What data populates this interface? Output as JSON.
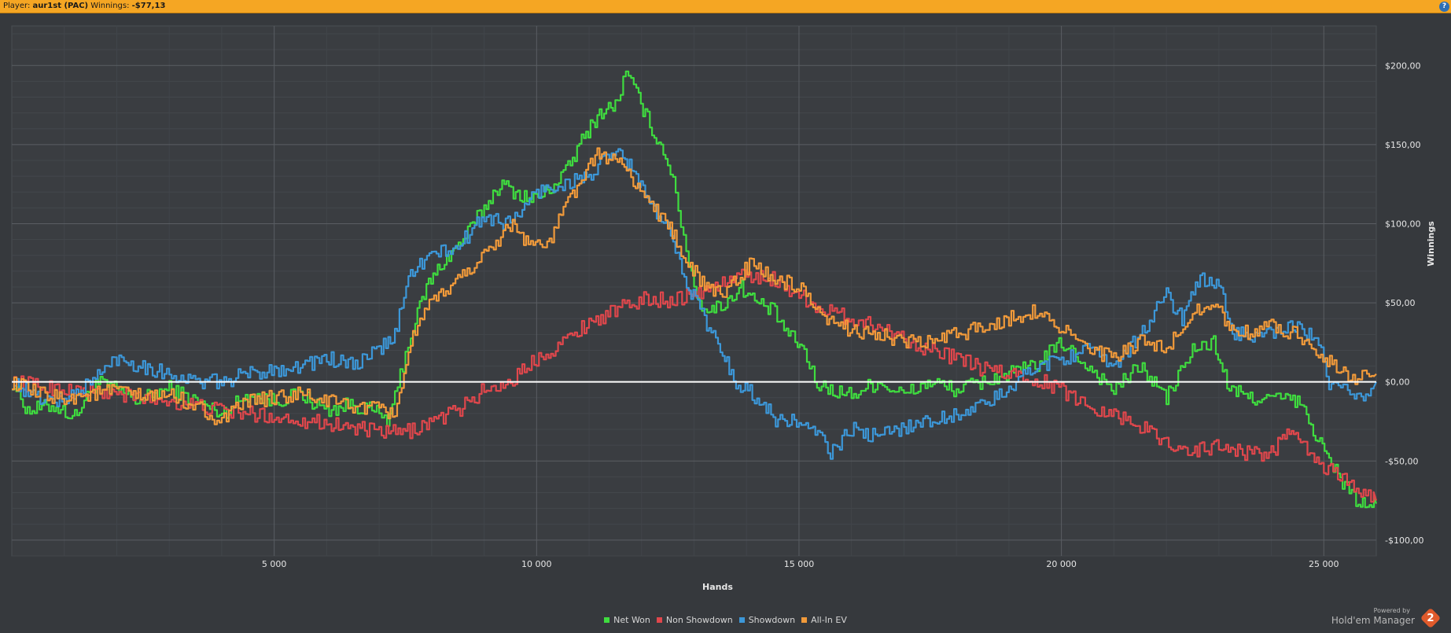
{
  "header": {
    "player_label": "Player:",
    "player_name": "aur1st (PAC)",
    "winnings_label": "Winnings:",
    "winnings_value": "-$77,13",
    "help_icon": "question-icon"
  },
  "branding": {
    "powered_by": "Powered by",
    "product": "Hold'em Manager",
    "logo_text": "2"
  },
  "chart_data": {
    "type": "line",
    "xlabel": "Hands",
    "ylabel": "Winnings",
    "xlim": [
      0,
      26000
    ],
    "ylim": [
      -110,
      225
    ],
    "xticks": [
      5000,
      10000,
      15000,
      20000,
      25000
    ],
    "xtick_labels": [
      "5 000",
      "10 000",
      "15 000",
      "20 000",
      "25 000"
    ],
    "yticks": [
      -100,
      -50,
      0,
      50,
      100,
      150,
      200
    ],
    "ytick_labels": [
      "-$100,00",
      "-$50,00",
      "$0,00",
      "$50,00",
      "$100,00",
      "$150,00",
      "$200,00"
    ],
    "grid": true,
    "legend": "bottom-center",
    "zero_line_color": "#ffffff",
    "series": [
      {
        "name": "Net Won",
        "color": "#3fdc3f",
        "points": [
          [
            0,
            0
          ],
          [
            300,
            -18
          ],
          [
            800,
            -15
          ],
          [
            1200,
            -22
          ],
          [
            1600,
            0
          ],
          [
            2000,
            -5
          ],
          [
            2400,
            -12
          ],
          [
            3000,
            -4
          ],
          [
            3500,
            -12
          ],
          [
            4000,
            -20
          ],
          [
            4500,
            -8
          ],
          [
            5000,
            -12
          ],
          [
            5500,
            -8
          ],
          [
            6000,
            -18
          ],
          [
            6500,
            -14
          ],
          [
            7000,
            -20
          ],
          [
            7200,
            -25
          ],
          [
            7400,
            5
          ],
          [
            7600,
            30
          ],
          [
            7900,
            60
          ],
          [
            8200,
            75
          ],
          [
            8600,
            90
          ],
          [
            9000,
            110
          ],
          [
            9300,
            125
          ],
          [
            9600,
            120
          ],
          [
            9900,
            115
          ],
          [
            10200,
            120
          ],
          [
            10600,
            135
          ],
          [
            10900,
            155
          ],
          [
            11200,
            170
          ],
          [
            11500,
            175
          ],
          [
            11700,
            195
          ],
          [
            11900,
            182
          ],
          [
            12200,
            160
          ],
          [
            12500,
            140
          ],
          [
            12700,
            110
          ],
          [
            12900,
            75
          ],
          [
            13100,
            50
          ],
          [
            13300,
            45
          ],
          [
            13600,
            50
          ],
          [
            13900,
            60
          ],
          [
            14200,
            50
          ],
          [
            14500,
            45
          ],
          [
            14800,
            30
          ],
          [
            15100,
            20
          ],
          [
            15300,
            0
          ],
          [
            15600,
            -5
          ],
          [
            16000,
            -8
          ],
          [
            16500,
            0
          ],
          [
            17000,
            -8
          ],
          [
            17500,
            0
          ],
          [
            18000,
            -5
          ],
          [
            18500,
            0
          ],
          [
            19000,
            5
          ],
          [
            19500,
            10
          ],
          [
            20000,
            25
          ],
          [
            20500,
            10
          ],
          [
            21000,
            -5
          ],
          [
            21500,
            10
          ],
          [
            22000,
            -10
          ],
          [
            22500,
            20
          ],
          [
            22900,
            25
          ],
          [
            23200,
            -5
          ],
          [
            23600,
            -10
          ],
          [
            24000,
            -10
          ],
          [
            24500,
            -12
          ],
          [
            24800,
            -30
          ],
          [
            25100,
            -50
          ],
          [
            25400,
            -65
          ],
          [
            25700,
            -78
          ],
          [
            26000,
            -77
          ]
        ]
      },
      {
        "name": "Non Showdown",
        "color": "#e0474c",
        "points": [
          [
            0,
            0
          ],
          [
            1000,
            -5
          ],
          [
            2000,
            -8
          ],
          [
            3000,
            -12
          ],
          [
            4000,
            -18
          ],
          [
            5000,
            -22
          ],
          [
            6000,
            -26
          ],
          [
            7000,
            -32
          ],
          [
            7500,
            -32
          ],
          [
            8000,
            -25
          ],
          [
            8500,
            -18
          ],
          [
            9000,
            -5
          ],
          [
            9500,
            0
          ],
          [
            10000,
            15
          ],
          [
            10500,
            25
          ],
          [
            11000,
            38
          ],
          [
            11500,
            45
          ],
          [
            12000,
            52
          ],
          [
            12500,
            52
          ],
          [
            13000,
            55
          ],
          [
            13500,
            62
          ],
          [
            14000,
            68
          ],
          [
            14500,
            65
          ],
          [
            15000,
            55
          ],
          [
            15500,
            45
          ],
          [
            16000,
            40
          ],
          [
            16500,
            35
          ],
          [
            17000,
            28
          ],
          [
            17500,
            20
          ],
          [
            18000,
            15
          ],
          [
            18500,
            8
          ],
          [
            19000,
            5
          ],
          [
            19500,
            2
          ],
          [
            20000,
            -5
          ],
          [
            20500,
            -15
          ],
          [
            21000,
            -20
          ],
          [
            21500,
            -28
          ],
          [
            22000,
            -38
          ],
          [
            22500,
            -44
          ],
          [
            23000,
            -40
          ],
          [
            23500,
            -45
          ],
          [
            24000,
            -45
          ],
          [
            24300,
            -32
          ],
          [
            24600,
            -40
          ],
          [
            25000,
            -55
          ],
          [
            25400,
            -60
          ],
          [
            25800,
            -72
          ],
          [
            26000,
            -75
          ]
        ]
      },
      {
        "name": "Showdown",
        "color": "#3c97d8",
        "points": [
          [
            0,
            0
          ],
          [
            500,
            -10
          ],
          [
            1000,
            -12
          ],
          [
            1500,
            0
          ],
          [
            2000,
            15
          ],
          [
            2500,
            10
          ],
          [
            3000,
            5
          ],
          [
            3500,
            0
          ],
          [
            4000,
            0
          ],
          [
            4500,
            5
          ],
          [
            5000,
            8
          ],
          [
            5500,
            10
          ],
          [
            6000,
            15
          ],
          [
            6500,
            10
          ],
          [
            7000,
            20
          ],
          [
            7300,
            30
          ],
          [
            7600,
            70
          ],
          [
            8000,
            80
          ],
          [
            8500,
            85
          ],
          [
            9000,
            105
          ],
          [
            9500,
            100
          ],
          [
            10000,
            120
          ],
          [
            10500,
            125
          ],
          [
            11000,
            130
          ],
          [
            11300,
            140
          ],
          [
            11600,
            145
          ],
          [
            11900,
            130
          ],
          [
            12200,
            110
          ],
          [
            12600,
            90
          ],
          [
            12900,
            60
          ],
          [
            13200,
            40
          ],
          [
            13500,
            20
          ],
          [
            13800,
            0
          ],
          [
            14200,
            -10
          ],
          [
            14600,
            -25
          ],
          [
            15000,
            -25
          ],
          [
            15400,
            -35
          ],
          [
            15600,
            -45
          ],
          [
            16000,
            -30
          ],
          [
            16500,
            -35
          ],
          [
            17000,
            -28
          ],
          [
            17500,
            -25
          ],
          [
            18000,
            -20
          ],
          [
            18500,
            -15
          ],
          [
            19000,
            -5
          ],
          [
            19500,
            10
          ],
          [
            20000,
            15
          ],
          [
            20500,
            20
          ],
          [
            21000,
            10
          ],
          [
            21500,
            30
          ],
          [
            22000,
            55
          ],
          [
            22300,
            40
          ],
          [
            22600,
            65
          ],
          [
            23000,
            60
          ],
          [
            23300,
            30
          ],
          [
            23600,
            30
          ],
          [
            24000,
            30
          ],
          [
            24500,
            35
          ],
          [
            24900,
            25
          ],
          [
            25100,
            -5
          ],
          [
            25500,
            -5
          ],
          [
            25800,
            -10
          ],
          [
            26000,
            0
          ]
        ]
      },
      {
        "name": "All-In EV",
        "color": "#f19a3a",
        "points": [
          [
            0,
            0
          ],
          [
            500,
            -8
          ],
          [
            1000,
            -10
          ],
          [
            1500,
            -8
          ],
          [
            2000,
            -5
          ],
          [
            2500,
            -10
          ],
          [
            3000,
            -8
          ],
          [
            3500,
            -15
          ],
          [
            4000,
            -25
          ],
          [
            4500,
            -12
          ],
          [
            5000,
            -10
          ],
          [
            5500,
            -8
          ],
          [
            6000,
            -12
          ],
          [
            6500,
            -15
          ],
          [
            7000,
            -18
          ],
          [
            7300,
            -20
          ],
          [
            7600,
            25
          ],
          [
            8000,
            50
          ],
          [
            8500,
            65
          ],
          [
            9000,
            80
          ],
          [
            9500,
            100
          ],
          [
            9800,
            90
          ],
          [
            10200,
            85
          ],
          [
            10600,
            115
          ],
          [
            10900,
            130
          ],
          [
            11200,
            145
          ],
          [
            11500,
            140
          ],
          [
            11800,
            130
          ],
          [
            12100,
            115
          ],
          [
            12500,
            100
          ],
          [
            12800,
            80
          ],
          [
            13200,
            60
          ],
          [
            13500,
            55
          ],
          [
            13800,
            65
          ],
          [
            14100,
            75
          ],
          [
            14500,
            65
          ],
          [
            15000,
            60
          ],
          [
            15400,
            40
          ],
          [
            15800,
            35
          ],
          [
            16500,
            30
          ],
          [
            17000,
            25
          ],
          [
            17500,
            25
          ],
          [
            18000,
            30
          ],
          [
            18500,
            35
          ],
          [
            19000,
            40
          ],
          [
            19500,
            45
          ],
          [
            20000,
            35
          ],
          [
            20500,
            20
          ],
          [
            21000,
            15
          ],
          [
            21500,
            25
          ],
          [
            22000,
            20
          ],
          [
            22500,
            45
          ],
          [
            22900,
            50
          ],
          [
            23200,
            35
          ],
          [
            23600,
            30
          ],
          [
            24000,
            35
          ],
          [
            24500,
            30
          ],
          [
            24900,
            20
          ],
          [
            25200,
            10
          ],
          [
            25600,
            2
          ],
          [
            26000,
            5
          ]
        ]
      }
    ]
  }
}
